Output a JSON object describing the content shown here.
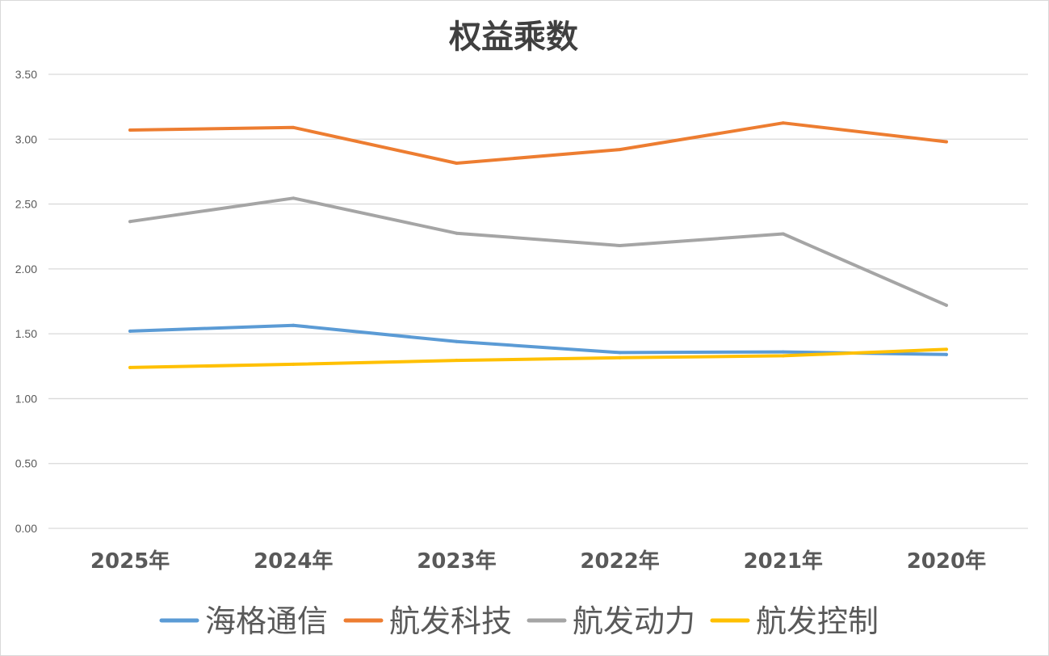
{
  "chart_data": {
    "type": "line",
    "title": "权益乘数",
    "xlabel": "",
    "ylabel": "",
    "categories": [
      "2025年",
      "2024年",
      "2023年",
      "2022年",
      "2021年",
      "2020年"
    ],
    "yticks": [
      "0.00",
      "0.50",
      "1.00",
      "1.50",
      "2.00",
      "2.50",
      "3.00",
      "3.50"
    ],
    "ylim": [
      0,
      3.5
    ],
    "grid": true,
    "legend_position": "bottom",
    "series": [
      {
        "name": "海格通信",
        "color": "#5b9bd5",
        "values": [
          1.52,
          1.565,
          1.44,
          1.355,
          1.36,
          1.34
        ]
      },
      {
        "name": "航发科技",
        "color": "#ed7d31",
        "values": [
          3.07,
          3.09,
          2.815,
          2.92,
          3.125,
          2.98
        ]
      },
      {
        "name": "航发动力",
        "color": "#a5a5a5",
        "values": [
          2.365,
          2.545,
          2.275,
          2.18,
          2.27,
          1.72
        ]
      },
      {
        "name": "航发控制",
        "color": "#ffc000",
        "values": [
          1.24,
          1.265,
          1.295,
          1.315,
          1.33,
          1.38
        ]
      }
    ]
  }
}
